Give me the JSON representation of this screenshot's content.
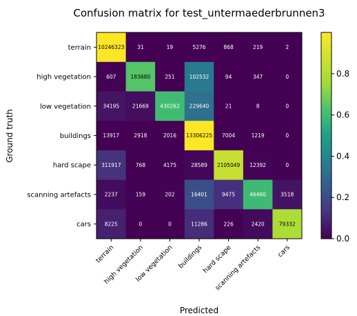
{
  "chart_data": {
    "type": "heatmap",
    "title": "Confusion matrix for test_untermaederbrunnen3",
    "xlabel": "Predicted",
    "ylabel": "Ground truth",
    "rows": [
      "terrain",
      "high vegetation",
      "low vegetation",
      "buildings",
      "hard scape",
      "scanning artefacts",
      "cars"
    ],
    "cols": [
      "terrain",
      "high vegetation",
      "low vegetation",
      "buildings",
      "hard scape",
      "scanning artefacts",
      "cars"
    ],
    "values": [
      [
        10246323,
        31,
        19,
        5276,
        868,
        219,
        2
      ],
      [
        607,
        183680,
        251,
        102532,
        94,
        347,
        0
      ],
      [
        34195,
        21669,
        430262,
        229640,
        21,
        8,
        0
      ],
      [
        13917,
        2918,
        2016,
        13306225,
        7004,
        1219,
        0
      ],
      [
        311917,
        768,
        4175,
        28589,
        2105049,
        12392,
        0
      ],
      [
        2237,
        159,
        202,
        16401,
        9475,
        46460,
        3518
      ],
      [
        8225,
        0,
        0,
        11286,
        226,
        2420,
        79332
      ]
    ],
    "colormap": "viridis",
    "normalization": "row",
    "colorbar": {
      "range": [
        0.0,
        1.0
      ],
      "ticks": [
        0.0,
        0.2,
        0.4,
        0.6,
        0.8
      ],
      "tick_labels": [
        "0.0",
        "0.2",
        "0.4",
        "0.6",
        "0.8"
      ]
    }
  }
}
